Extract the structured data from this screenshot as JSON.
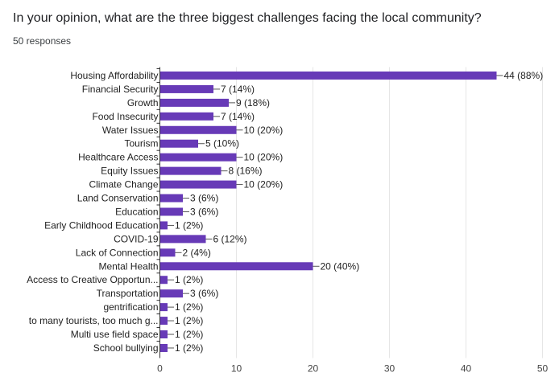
{
  "question": "In your opinion, what are the three biggest challenges facing the local community?",
  "response_count": "50 responses",
  "colors": {
    "bar": "#673ab7",
    "axis": "#333333",
    "grid": "#e6e6e6",
    "leader": "#555555"
  },
  "chart_data": {
    "type": "bar",
    "orientation": "horizontal",
    "categories": [
      "Housing Affordability",
      "Financial Security",
      "Growth",
      "Food Insecurity",
      "Water Issues",
      "Tourism",
      "Healthcare Access",
      "Equity Issues",
      "Climate Change",
      "Land Conservation",
      "Education",
      "Early Childhood Education",
      "COVID-19",
      "Lack of Connection",
      "Mental Health",
      "Access to Creative Opportun...",
      "Transportation",
      "gentrification",
      "to many tourists, too much g...",
      "Multi use field space",
      "School bullying"
    ],
    "values": [
      44,
      7,
      9,
      7,
      10,
      5,
      10,
      8,
      10,
      3,
      3,
      1,
      6,
      2,
      20,
      1,
      3,
      1,
      1,
      1,
      1
    ],
    "data_labels": [
      "44 (88%)",
      "7 (14%)",
      "9 (18%)",
      "7 (14%)",
      "10 (20%)",
      "5 (10%)",
      "10 (20%)",
      "8 (16%)",
      "10 (20%)",
      "3 (6%)",
      "3 (6%)",
      "1 (2%)",
      "6 (12%)",
      "2 (4%)",
      "20 (40%)",
      "1 (2%)",
      "3 (6%)",
      "1 (2%)",
      "1 (2%)",
      "1 (2%)",
      "1 (2%)"
    ],
    "xlim": [
      0,
      50
    ],
    "xticks": [
      "0",
      "10",
      "20",
      "30",
      "40",
      "50"
    ],
    "grid": "vertical"
  }
}
